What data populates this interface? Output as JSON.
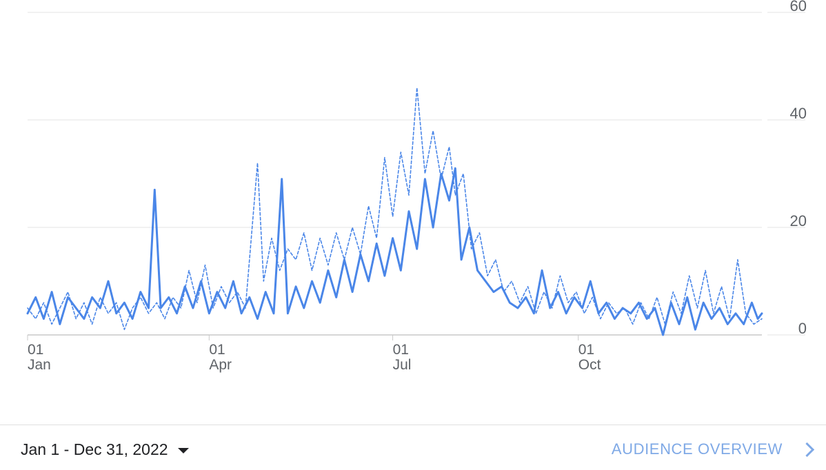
{
  "chart_data": {
    "type": "line",
    "title": "",
    "xlabel": "",
    "ylabel": "",
    "x_range": [
      "2022-01-01",
      "2022-12-31"
    ],
    "ylim": [
      0,
      60
    ],
    "y_ticks": [
      0,
      20,
      40,
      60
    ],
    "x_ticks": [
      {
        "date": "2022-01-01",
        "day": "01",
        "month": "Jan"
      },
      {
        "date": "2022-04-01",
        "day": "01",
        "month": "Apr"
      },
      {
        "date": "2022-07-01",
        "day": "01",
        "month": "Jul"
      },
      {
        "date": "2022-10-01",
        "day": "01",
        "month": "Oct"
      }
    ],
    "grid": true,
    "y_axis_side": "right",
    "series": [
      {
        "style": "solid",
        "color": "#4a86e8",
        "points": [
          [
            "2022-01-01",
            4
          ],
          [
            "2022-01-05",
            7
          ],
          [
            "2022-01-09",
            3
          ],
          [
            "2022-01-13",
            8
          ],
          [
            "2022-01-17",
            2
          ],
          [
            "2022-01-21",
            7
          ],
          [
            "2022-01-25",
            5
          ],
          [
            "2022-01-29",
            3
          ],
          [
            "2022-02-02",
            7
          ],
          [
            "2022-02-06",
            5
          ],
          [
            "2022-02-10",
            10
          ],
          [
            "2022-02-14",
            4
          ],
          [
            "2022-02-18",
            6
          ],
          [
            "2022-02-22",
            3
          ],
          [
            "2022-02-26",
            8
          ],
          [
            "2022-03-02",
            5
          ],
          [
            "2022-03-05",
            27
          ],
          [
            "2022-03-08",
            5
          ],
          [
            "2022-03-12",
            7
          ],
          [
            "2022-03-16",
            4
          ],
          [
            "2022-03-20",
            9
          ],
          [
            "2022-03-24",
            5
          ],
          [
            "2022-03-28",
            10
          ],
          [
            "2022-04-01",
            4
          ],
          [
            "2022-04-05",
            8
          ],
          [
            "2022-04-09",
            5
          ],
          [
            "2022-04-13",
            10
          ],
          [
            "2022-04-17",
            4
          ],
          [
            "2022-04-21",
            7
          ],
          [
            "2022-04-25",
            3
          ],
          [
            "2022-04-29",
            8
          ],
          [
            "2022-05-03",
            4
          ],
          [
            "2022-05-07",
            29
          ],
          [
            "2022-05-10",
            4
          ],
          [
            "2022-05-14",
            9
          ],
          [
            "2022-05-18",
            5
          ],
          [
            "2022-05-22",
            10
          ],
          [
            "2022-05-26",
            6
          ],
          [
            "2022-05-30",
            12
          ],
          [
            "2022-06-03",
            7
          ],
          [
            "2022-06-07",
            14
          ],
          [
            "2022-06-11",
            8
          ],
          [
            "2022-06-15",
            15
          ],
          [
            "2022-06-19",
            10
          ],
          [
            "2022-06-23",
            17
          ],
          [
            "2022-06-27",
            11
          ],
          [
            "2022-07-01",
            18
          ],
          [
            "2022-07-05",
            12
          ],
          [
            "2022-07-09",
            23
          ],
          [
            "2022-07-13",
            16
          ],
          [
            "2022-07-17",
            29
          ],
          [
            "2022-07-21",
            20
          ],
          [
            "2022-07-25",
            30
          ],
          [
            "2022-07-29",
            25
          ],
          [
            "2022-08-01",
            31
          ],
          [
            "2022-08-04",
            14
          ],
          [
            "2022-08-08",
            20
          ],
          [
            "2022-08-12",
            12
          ],
          [
            "2022-08-16",
            10
          ],
          [
            "2022-08-20",
            8
          ],
          [
            "2022-08-24",
            9
          ],
          [
            "2022-08-28",
            6
          ],
          [
            "2022-09-01",
            5
          ],
          [
            "2022-09-05",
            7
          ],
          [
            "2022-09-09",
            4
          ],
          [
            "2022-09-13",
            12
          ],
          [
            "2022-09-17",
            5
          ],
          [
            "2022-09-21",
            8
          ],
          [
            "2022-09-25",
            4
          ],
          [
            "2022-09-29",
            7
          ],
          [
            "2022-10-03",
            5
          ],
          [
            "2022-10-07",
            10
          ],
          [
            "2022-10-11",
            4
          ],
          [
            "2022-10-15",
            6
          ],
          [
            "2022-10-19",
            3
          ],
          [
            "2022-10-23",
            5
          ],
          [
            "2022-10-27",
            4
          ],
          [
            "2022-10-31",
            6
          ],
          [
            "2022-11-04",
            3
          ],
          [
            "2022-11-08",
            5
          ],
          [
            "2022-11-12",
            0
          ],
          [
            "2022-11-16",
            6
          ],
          [
            "2022-11-20",
            2
          ],
          [
            "2022-11-24",
            7
          ],
          [
            "2022-11-28",
            1
          ],
          [
            "2022-12-02",
            6
          ],
          [
            "2022-12-06",
            3
          ],
          [
            "2022-12-10",
            5
          ],
          [
            "2022-12-14",
            2
          ],
          [
            "2022-12-18",
            4
          ],
          [
            "2022-12-22",
            2
          ],
          [
            "2022-12-26",
            6
          ],
          [
            "2022-12-29",
            3
          ],
          [
            "2022-12-31",
            4
          ]
        ]
      },
      {
        "style": "dashed",
        "color": "#4a86e8",
        "points": [
          [
            "2022-01-01",
            5
          ],
          [
            "2022-01-05",
            3
          ],
          [
            "2022-01-09",
            6
          ],
          [
            "2022-01-13",
            2
          ],
          [
            "2022-01-17",
            5
          ],
          [
            "2022-01-21",
            8
          ],
          [
            "2022-01-25",
            3
          ],
          [
            "2022-01-29",
            6
          ],
          [
            "2022-02-02",
            2
          ],
          [
            "2022-02-06",
            7
          ],
          [
            "2022-02-10",
            4
          ],
          [
            "2022-02-14",
            6
          ],
          [
            "2022-02-18",
            1
          ],
          [
            "2022-02-22",
            5
          ],
          [
            "2022-02-26",
            7
          ],
          [
            "2022-03-02",
            4
          ],
          [
            "2022-03-06",
            6
          ],
          [
            "2022-03-10",
            3
          ],
          [
            "2022-03-14",
            7
          ],
          [
            "2022-03-18",
            5
          ],
          [
            "2022-03-22",
            12
          ],
          [
            "2022-03-26",
            6
          ],
          [
            "2022-03-30",
            13
          ],
          [
            "2022-04-03",
            5
          ],
          [
            "2022-04-07",
            9
          ],
          [
            "2022-04-11",
            6
          ],
          [
            "2022-04-15",
            8
          ],
          [
            "2022-04-19",
            5
          ],
          [
            "2022-04-25",
            32
          ],
          [
            "2022-04-28",
            10
          ],
          [
            "2022-05-02",
            18
          ],
          [
            "2022-05-06",
            12
          ],
          [
            "2022-05-10",
            16
          ],
          [
            "2022-05-14",
            14
          ],
          [
            "2022-05-18",
            19
          ],
          [
            "2022-05-22",
            12
          ],
          [
            "2022-05-26",
            18
          ],
          [
            "2022-05-30",
            13
          ],
          [
            "2022-06-03",
            19
          ],
          [
            "2022-06-07",
            14
          ],
          [
            "2022-06-11",
            20
          ],
          [
            "2022-06-15",
            15
          ],
          [
            "2022-06-19",
            24
          ],
          [
            "2022-06-23",
            18
          ],
          [
            "2022-06-27",
            33
          ],
          [
            "2022-07-01",
            22
          ],
          [
            "2022-07-05",
            34
          ],
          [
            "2022-07-09",
            26
          ],
          [
            "2022-07-13",
            46
          ],
          [
            "2022-07-17",
            30
          ],
          [
            "2022-07-21",
            38
          ],
          [
            "2022-07-25",
            29
          ],
          [
            "2022-07-29",
            35
          ],
          [
            "2022-08-01",
            26
          ],
          [
            "2022-08-05",
            30
          ],
          [
            "2022-08-09",
            16
          ],
          [
            "2022-08-13",
            19
          ],
          [
            "2022-08-17",
            11
          ],
          [
            "2022-08-21",
            14
          ],
          [
            "2022-08-25",
            8
          ],
          [
            "2022-08-29",
            10
          ],
          [
            "2022-09-02",
            6
          ],
          [
            "2022-09-06",
            9
          ],
          [
            "2022-09-10",
            4
          ],
          [
            "2022-09-14",
            8
          ],
          [
            "2022-09-18",
            5
          ],
          [
            "2022-09-22",
            11
          ],
          [
            "2022-09-26",
            6
          ],
          [
            "2022-09-30",
            8
          ],
          [
            "2022-10-04",
            4
          ],
          [
            "2022-10-08",
            7
          ],
          [
            "2022-10-12",
            3
          ],
          [
            "2022-10-16",
            6
          ],
          [
            "2022-10-20",
            4
          ],
          [
            "2022-10-24",
            5
          ],
          [
            "2022-10-28",
            2
          ],
          [
            "2022-11-01",
            6
          ],
          [
            "2022-11-05",
            3
          ],
          [
            "2022-11-09",
            7
          ],
          [
            "2022-11-13",
            2
          ],
          [
            "2022-11-17",
            8
          ],
          [
            "2022-11-21",
            4
          ],
          [
            "2022-11-25",
            11
          ],
          [
            "2022-11-29",
            5
          ],
          [
            "2022-12-03",
            12
          ],
          [
            "2022-12-07",
            4
          ],
          [
            "2022-12-11",
            9
          ],
          [
            "2022-12-15",
            3
          ],
          [
            "2022-12-19",
            14
          ],
          [
            "2022-12-23",
            4
          ],
          [
            "2022-12-27",
            2
          ],
          [
            "2022-12-31",
            3
          ]
        ]
      }
    ]
  },
  "footer": {
    "date_range_label": "Jan 1 - Dec 31, 2022",
    "overview_link_label": "AUDIENCE OVERVIEW"
  },
  "icons": {
    "date_dropdown": "caret-down-icon",
    "overview_link": "chevron-right-icon"
  }
}
